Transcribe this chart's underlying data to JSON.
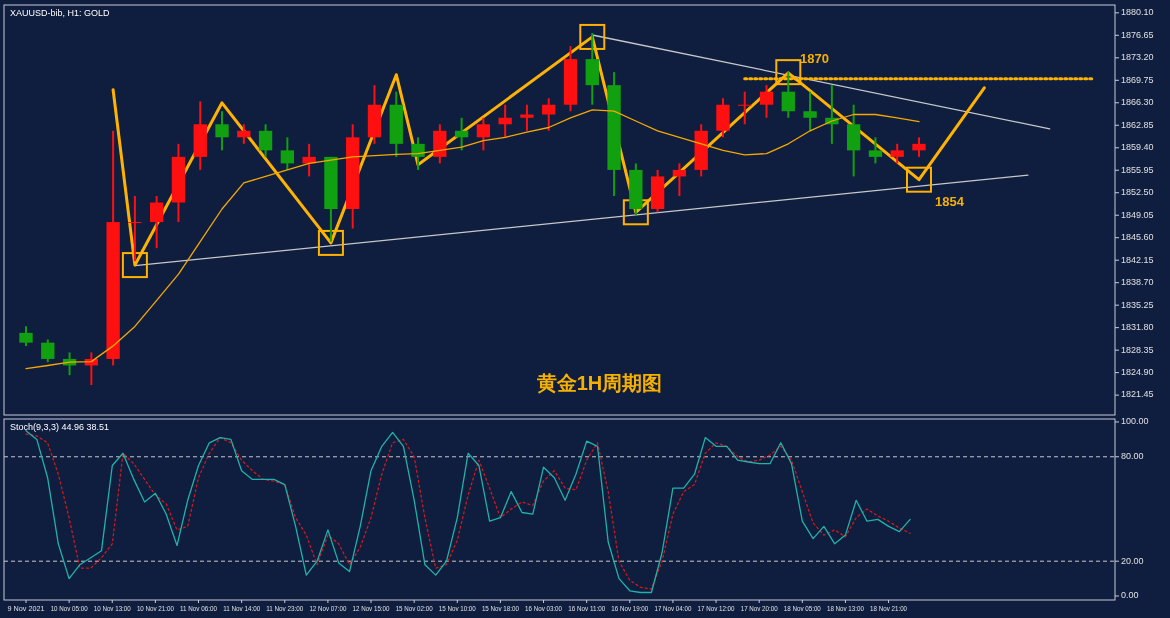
{
  "chart_data": [
    {
      "type": "candlestick",
      "title": "XAUUSD-bib, H1: GOLD",
      "annotations": [
        "黄金1H周期图",
        "1870",
        "1854"
      ],
      "categories": [
        null,
        null,
        null,
        null,
        null,
        null,
        null,
        null,
        null,
        null,
        null,
        null,
        null,
        null,
        null,
        null,
        null,
        null,
        null,
        null,
        null,
        null,
        null,
        null,
        null,
        null,
        null,
        null,
        null,
        null,
        null,
        null,
        null,
        null,
        null,
        null,
        null,
        null,
        null,
        null,
        null,
        null,
        null,
        null,
        null,
        null,
        null,
        null,
        null,
        null
      ],
      "ohlc": [
        [
          1831,
          1832,
          1829,
          1829.5
        ],
        [
          1829.5,
          1830,
          1826.5,
          1827
        ],
        [
          1827,
          1828,
          1824.5,
          1826
        ],
        [
          1826,
          1828,
          1823,
          1827
        ],
        [
          1827,
          1862,
          1826,
          1848
        ],
        [
          1848,
          1852,
          1842,
          1848
        ],
        [
          1848,
          1852,
          1844,
          1851
        ],
        [
          1851,
          1860,
          1848,
          1858
        ],
        [
          1858,
          1866.5,
          1856,
          1863
        ],
        [
          1863,
          1865,
          1859,
          1861
        ],
        [
          1861,
          1863,
          1860,
          1862
        ],
        [
          1862,
          1863,
          1858,
          1859
        ],
        [
          1859,
          1861,
          1856,
          1857
        ],
        [
          1857,
          1860,
          1855,
          1858
        ],
        [
          1858,
          1858,
          1845,
          1850
        ],
        [
          1850,
          1863,
          1847,
          1861
        ],
        [
          1861,
          1869,
          1860,
          1866
        ],
        [
          1866,
          1868,
          1858,
          1860
        ],
        [
          1860,
          1861,
          1856,
          1858
        ],
        [
          1858,
          1863,
          1857,
          1862
        ],
        [
          1862,
          1864,
          1859,
          1861
        ],
        [
          1861,
          1864,
          1859,
          1863
        ],
        [
          1863,
          1866,
          1861,
          1864
        ],
        [
          1864,
          1866,
          1862,
          1864.5
        ],
        [
          1864.5,
          1867,
          1862,
          1866
        ],
        [
          1866,
          1875,
          1865,
          1873
        ],
        [
          1873,
          1877,
          1866,
          1869
        ],
        [
          1869,
          1871,
          1852,
          1856
        ],
        [
          1856,
          1857,
          1849,
          1850
        ],
        [
          1850,
          1856,
          1849.5,
          1855
        ],
        [
          1855,
          1857,
          1852,
          1856
        ],
        [
          1856,
          1863,
          1855,
          1862
        ],
        [
          1862,
          1867,
          1861,
          1866
        ],
        [
          1866,
          1868,
          1863,
          1866
        ],
        [
          1866,
          1869,
          1864,
          1868
        ],
        [
          1868,
          1871,
          1864,
          1865
        ],
        [
          1865,
          1868,
          1862,
          1864
        ],
        [
          1864,
          1869,
          1860,
          1863
        ],
        [
          1863,
          1866,
          1855,
          1859
        ],
        [
          1859,
          1861,
          1857,
          1858
        ],
        [
          1858,
          1860,
          1857,
          1859
        ],
        [
          1859,
          1861,
          1858,
          1860
        ],
        null,
        null,
        null,
        null,
        null,
        null,
        null,
        null
      ],
      "ylim": [
        1818.4,
        1881.3
      ],
      "yticks": [
        {
          "value": 1821.45,
          "label": "1821.45"
        },
        {
          "value": 1824.9,
          "label": "1824.90"
        },
        {
          "value": 1828.35,
          "label": "1828.35"
        },
        {
          "value": 1831.8,
          "label": "1831.80"
        },
        {
          "value": 1835.25,
          "label": "1835.25"
        },
        {
          "value": 1838.7,
          "label": "1838.70"
        },
        {
          "value": 1842.15,
          "label": "1842.15"
        },
        {
          "value": 1845.6,
          "label": "1845.60"
        },
        {
          "value": 1849.05,
          "label": "1849.05"
        },
        {
          "value": 1852.5,
          "label": "1852.50"
        },
        {
          "value": 1855.95,
          "label": "1855.95"
        },
        {
          "value": 1859.4,
          "label": "1859.40"
        },
        {
          "value": 1862.85,
          "label": "1862.85"
        },
        {
          "value": 1866.3,
          "label": "1866.30"
        },
        {
          "value": 1869.75,
          "label": "1869.75"
        },
        {
          "value": 1873.2,
          "label": "1873.20"
        },
        {
          "value": 1876.65,
          "label": "1876.65"
        },
        {
          "value": 1880.1,
          "label": "1880.10"
        }
      ],
      "tick_labels": "y",
      "grid": false,
      "series": [
        {
          "type": "line",
          "color": "#f5a800",
          "line_style": "solid",
          "values": [
            1825.5,
            1826,
            1826.5,
            1826.6,
            1829,
            1832,
            1836,
            1840,
            1845,
            1850,
            1854,
            1855,
            1856,
            1857,
            1857.5,
            1858,
            1858.2,
            1858.4,
            1858.5,
            1859,
            1859.5,
            1860.5,
            1861,
            1861.8,
            1862.5,
            1864,
            1865.2,
            1865,
            1863.5,
            1862,
            1861,
            1860,
            1859,
            1858.3,
            1858.5,
            1860,
            1862,
            1863.5,
            1864.5,
            1864.5,
            1864,
            1863.4,
            null,
            null,
            null,
            null,
            null,
            null,
            null,
            null
          ]
        },
        {
          "type": "line",
          "color": "#c8c8c8",
          "line_style": "solid",
          "values": [
            null,
            null,
            null,
            null,
            null,
            1841.3,
            null,
            null,
            null,
            null,
            null,
            null,
            null,
            null,
            null,
            null,
            null,
            null,
            null,
            null,
            null,
            null,
            null,
            null,
            null,
            null,
            null,
            null,
            null,
            null,
            null,
            null,
            null,
            null,
            null,
            null,
            null,
            null,
            null,
            null,
            null,
            null,
            null,
            null,
            null,
            null,
            1855.2,
            null,
            null,
            null
          ]
        },
        {
          "type": "line",
          "color": "#c8c8c8",
          "line_style": "solid",
          "values": [
            null,
            null,
            null,
            null,
            null,
            null,
            null,
            null,
            null,
            null,
            null,
            null,
            null,
            null,
            null,
            null,
            null,
            null,
            null,
            null,
            null,
            null,
            null,
            null,
            null,
            null,
            1876.7,
            null,
            null,
            null,
            null,
            null,
            null,
            null,
            null,
            null,
            null,
            null,
            null,
            null,
            null,
            null,
            null,
            null,
            null,
            null,
            null,
            1862.3,
            null,
            null
          ]
        },
        {
          "type": "line",
          "color": "#ffb300",
          "line_style": "dotted",
          "values": [
            null,
            null,
            null,
            null,
            null,
            null,
            null,
            null,
            null,
            null,
            null,
            null,
            null,
            null,
            null,
            null,
            null,
            null,
            null,
            null,
            null,
            null,
            null,
            null,
            null,
            null,
            null,
            null,
            null,
            null,
            null,
            null,
            null,
            1870,
            null,
            null,
            null,
            null,
            null,
            null,
            null,
            null,
            null,
            null,
            null,
            null,
            null,
            null,
            null,
            1870
          ]
        },
        {
          "type": "line",
          "color": "#ffb300",
          "line_style": "solid",
          "values": [
            null,
            null,
            null,
            null,
            1868.3,
            1841.4,
            null,
            null,
            null,
            1866.3,
            null,
            null,
            null,
            null,
            1844.8,
            null,
            null,
            1870.6,
            1856.8,
            null,
            null,
            null,
            null,
            null,
            null,
            null,
            1876.4,
            null,
            1849.5,
            null,
            null,
            null,
            null,
            null,
            null,
            1870.9,
            null,
            null,
            null,
            null,
            null,
            1854.5,
            null,
            null,
            1868.6,
            null,
            null,
            null,
            null,
            null
          ]
        },
        {
          "type": "scatter",
          "color": "#ffb300",
          "marker": "square",
          "values": [
            null,
            null,
            null,
            null,
            null,
            1841.4,
            null,
            null,
            null,
            null,
            null,
            null,
            null,
            null,
            1844.8,
            null,
            null,
            null,
            null,
            null,
            null,
            null,
            null,
            null,
            null,
            null,
            1876.4,
            null,
            1849.5,
            null,
            null,
            null,
            null,
            null,
            null,
            1871,
            null,
            null,
            null,
            null,
            null,
            1854.5,
            null,
            null,
            null,
            null,
            null,
            null,
            null,
            null
          ]
        }
      ]
    },
    {
      "type": "line",
      "title": "Stoch(9,3,3) 44.96 38.51",
      "ylim": [
        -2.3,
        101.7
      ],
      "yticks": [
        {
          "value": 0,
          "label": "0.00"
        },
        {
          "value": 20,
          "label": "20.00"
        },
        {
          "value": 80,
          "label": "80.00"
        },
        {
          "value": 100,
          "label": "100.00"
        }
      ],
      "categories": [
        "9 Nov 2021",
        null,
        null,
        null,
        "10 Nov 05:00",
        null,
        null,
        null,
        "10 Nov 13:00",
        null,
        null,
        null,
        "10 Nov 21:00",
        null,
        null,
        null,
        "11 Nov 06:00",
        null,
        null,
        null,
        "11 Nov 14:00",
        null,
        null,
        null,
        "11 Nov 23:00",
        null,
        null,
        null,
        "12 Nov 07:00",
        null,
        null,
        null,
        "12 Nov 15:00",
        null,
        null,
        null,
        "15 Nov 02:00",
        null,
        null,
        null,
        "15 Nov 10:00",
        null,
        null,
        null,
        "15 Nov 18:00",
        null,
        null,
        null,
        "16 Nov 03:00",
        null,
        null,
        null,
        "16 Nov 11:00",
        null,
        null,
        null,
        "16 Nov 19:00",
        null,
        null,
        null,
        "17 Nov 04:00",
        null,
        null,
        null,
        "17 Nov 12:00",
        null,
        null,
        null,
        "17 Nov 20:00",
        null,
        null,
        null,
        "18 Nov 05:00",
        null,
        null,
        null,
        "18 Nov 13:00",
        null,
        null,
        null,
        "18 Nov 21:00",
        null,
        null,
        null,
        null,
        null,
        null,
        null,
        null,
        null,
        null,
        null,
        null,
        null,
        null,
        null,
        null,
        null,
        null,
        null,
        null
      ],
      "grid": false,
      "ref_lines": [
        {
          "axis": "y",
          "value": 20,
          "color": "#c8c8c8",
          "line_style": "dashed"
        },
        {
          "axis": "y",
          "value": 80,
          "color": "#c8c8c8",
          "line_style": "dashed"
        }
      ],
      "series": [
        {
          "type": "line",
          "color": "#20b2aa",
          "line_style": "solid",
          "values": [
            95,
            90,
            68,
            30,
            10,
            18,
            22,
            26,
            75,
            82,
            67,
            54,
            59,
            47,
            29,
            55,
            75,
            88,
            91,
            90,
            72,
            67,
            67,
            67,
            64,
            40,
            12,
            20,
            38,
            19,
            14,
            40,
            72,
            86,
            94,
            86,
            55,
            18,
            12,
            20,
            45,
            82,
            75,
            43,
            45,
            60,
            48,
            47,
            74,
            68,
            55,
            70,
            89,
            86,
            31,
            10,
            3,
            2,
            2,
            25,
            62,
            62,
            70,
            91,
            86,
            86,
            78,
            77,
            76,
            76,
            88,
            76,
            43,
            33,
            40,
            30,
            35,
            55,
            43,
            44,
            40,
            37,
            44,
            null,
            null,
            null,
            null,
            null,
            null,
            null,
            null,
            null,
            null,
            null,
            null,
            null,
            null,
            null,
            null,
            null,
            null
          ]
        },
        {
          "type": "line",
          "color": "#d01a1a",
          "line_style": "dotted",
          "values": [
            93,
            92,
            88,
            70,
            45,
            16,
            16,
            22,
            30,
            82,
            76,
            67,
            58,
            53,
            38,
            40,
            68,
            82,
            91,
            88,
            78,
            72,
            67,
            66,
            64,
            45,
            35,
            18,
            35,
            30,
            18,
            28,
            45,
            70,
            88,
            90,
            80,
            45,
            16,
            18,
            32,
            58,
            78,
            62,
            45,
            50,
            54,
            52,
            66,
            72,
            62,
            61,
            78,
            88,
            60,
            20,
            9,
            5,
            4,
            20,
            47,
            60,
            64,
            82,
            88,
            86,
            80,
            77,
            78,
            81,
            86,
            78,
            60,
            42,
            35,
            38,
            34,
            45,
            50,
            46,
            43,
            39,
            36,
            null,
            null,
            null,
            null,
            null,
            null,
            null,
            null,
            null,
            null,
            null,
            null,
            null,
            null,
            null,
            null,
            null,
            null
          ]
        }
      ]
    }
  ]
}
